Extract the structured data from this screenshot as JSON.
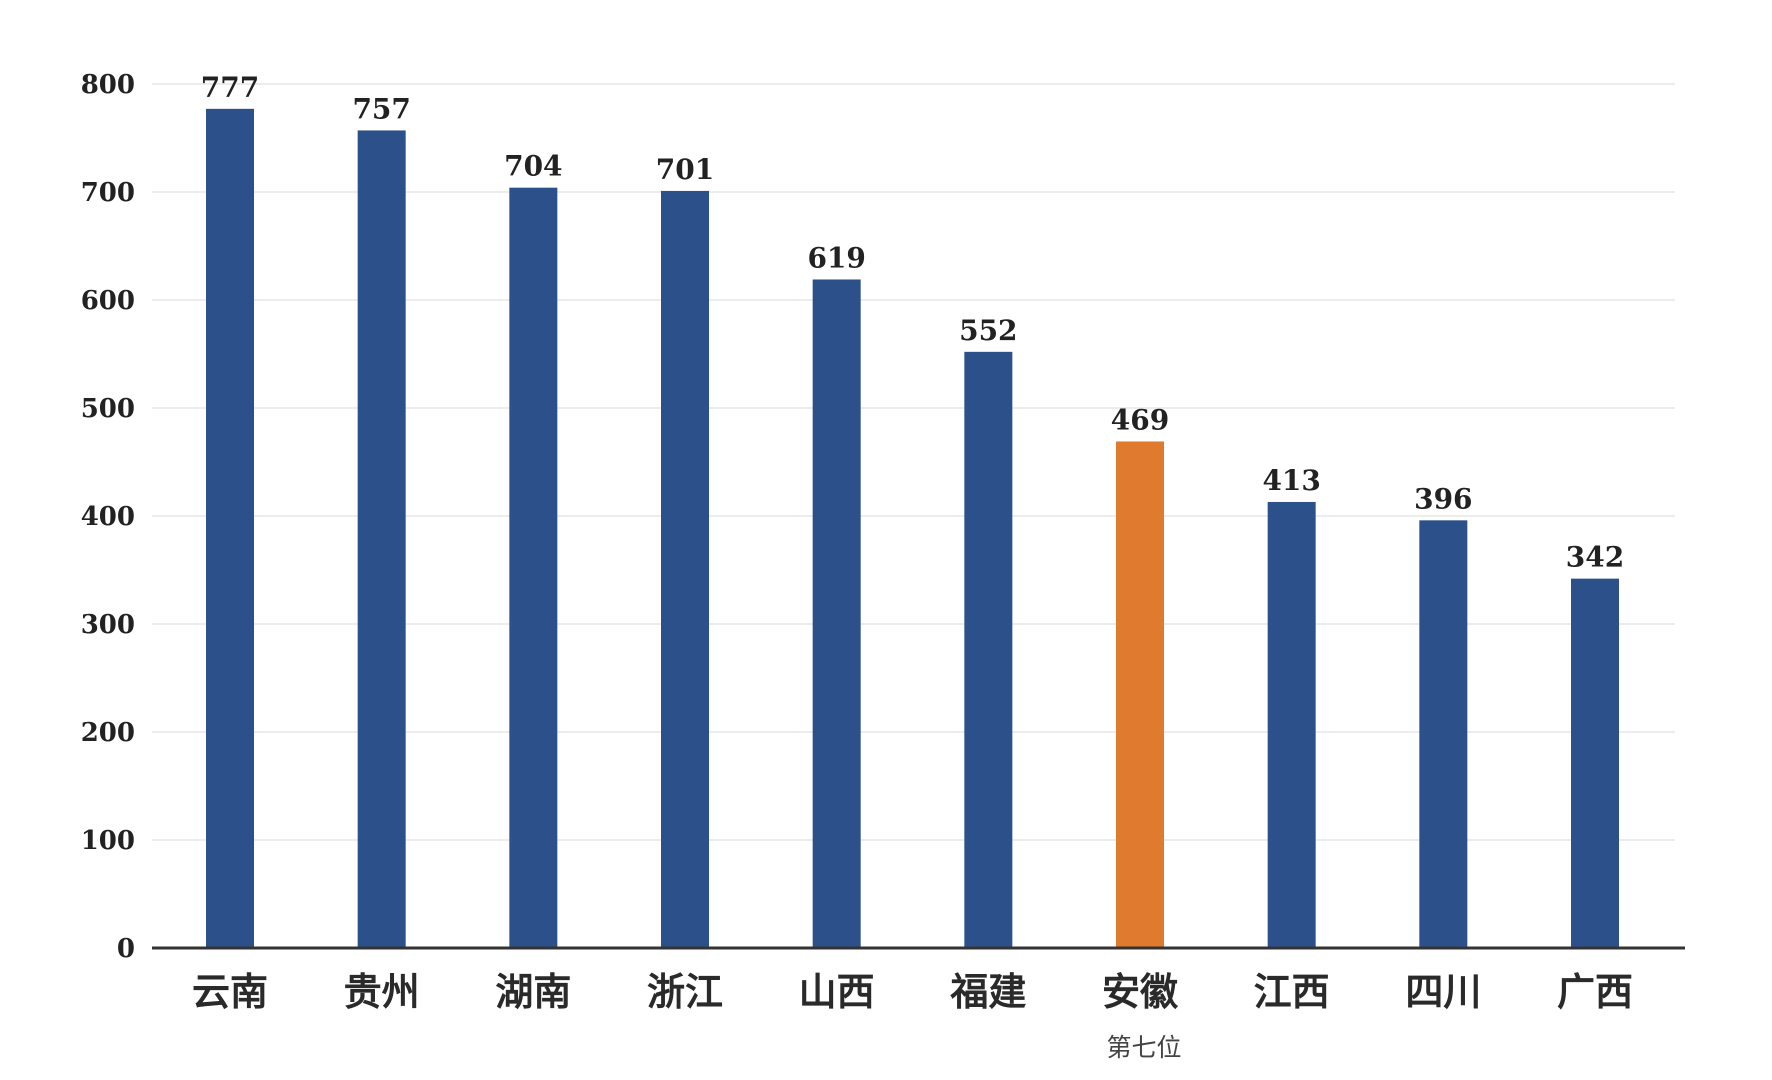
{
  "chart_data": {
    "type": "bar",
    "title": "",
    "xlabel": "",
    "ylabel": "",
    "categories": [
      "云南",
      "贵州",
      "湖南",
      "浙江",
      "山西",
      "福建",
      "安徽",
      "江西",
      "四川",
      "广西"
    ],
    "values": [
      777,
      757,
      704,
      701,
      619,
      552,
      469,
      413,
      396,
      342
    ],
    "data_labels": [
      "777",
      "757",
      "704",
      "701",
      "619",
      "552",
      "469",
      "413",
      "396",
      "342"
    ],
    "yticks": [
      0,
      100,
      200,
      300,
      400,
      500,
      600,
      700,
      800
    ],
    "ylim": [
      0,
      800
    ],
    "grid": true,
    "legend": "none",
    "highlight_index": 6,
    "highlight_note": "第七位",
    "colors": {
      "bar": "#2c5089",
      "highlight": "#e07a2e",
      "grid": "#e6e6e6",
      "axis": "#333333"
    }
  }
}
